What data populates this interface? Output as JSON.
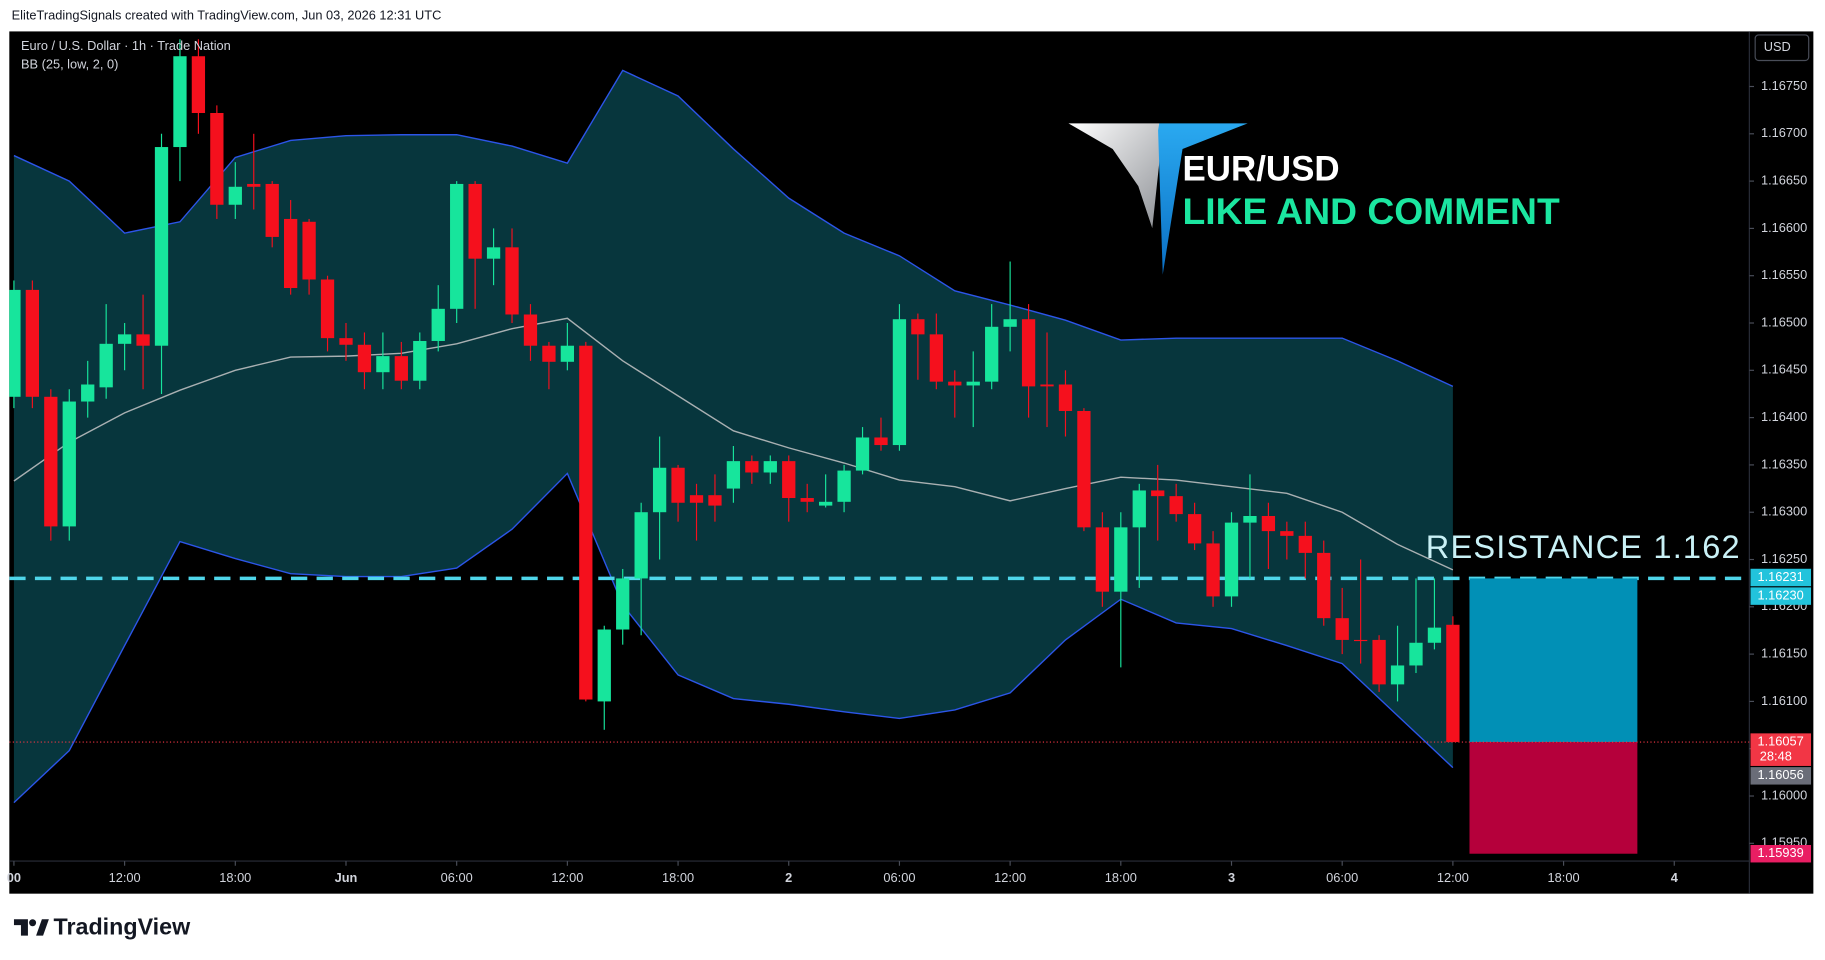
{
  "header": {
    "credit": "EliteTradingSignals created with TradingView.com, Jun 03, 2026 12:31 UTC"
  },
  "overlay": {
    "symbol": "EUR/USD",
    "cta": "LIKE AND COMMENT"
  },
  "footer": {
    "brand": "TradingView"
  },
  "chart_data": {
    "type": "candlestick",
    "title": "Euro / U.S. Dollar · 1h · Trade Nation",
    "indicator": "BB (25, low, 2, 0)",
    "currency": "USD",
    "up_color": "#17e59c",
    "down_color": "#f5101d",
    "ohlc": [
      [
        1.16422,
        1.16545,
        1.1641,
        1.16535
      ],
      [
        1.16535,
        1.16545,
        1.1641,
        1.16422
      ],
      [
        1.16422,
        1.1643,
        1.1627,
        1.16285
      ],
      [
        1.16285,
        1.1643,
        1.1627,
        1.16417
      ],
      [
        1.16417,
        1.1646,
        1.164,
        1.16435
      ],
      [
        1.16432,
        1.1652,
        1.1642,
        1.16478
      ],
      [
        1.16478,
        1.165,
        1.1645,
        1.16488
      ],
      [
        1.16488,
        1.1653,
        1.1643,
        1.16476
      ],
      [
        1.16476,
        1.167,
        1.16425,
        1.16686
      ],
      [
        1.16686,
        1.168,
        1.1665,
        1.16782
      ],
      [
        1.16782,
        1.168,
        1.167,
        1.16722
      ],
      [
        1.16722,
        1.1673,
        1.1661,
        1.16625
      ],
      [
        1.16625,
        1.1667,
        1.1661,
        1.16644
      ],
      [
        1.16647,
        1.167,
        1.1662,
        1.16644
      ],
      [
        1.16647,
        1.1665,
        1.1658,
        1.16591
      ],
      [
        1.1661,
        1.1663,
        1.1653,
        1.16537
      ],
      [
        1.16607,
        1.1661,
        1.1653,
        1.16546
      ],
      [
        1.16546,
        1.1655,
        1.1647,
        1.16484
      ],
      [
        1.16484,
        1.165,
        1.1646,
        1.16477
      ],
      [
        1.16477,
        1.1649,
        1.1643,
        1.16448
      ],
      [
        1.16448,
        1.1649,
        1.1643,
        1.16465
      ],
      [
        1.16465,
        1.1648,
        1.1643,
        1.16439
      ],
      [
        1.16439,
        1.1649,
        1.1643,
        1.16481
      ],
      [
        1.16481,
        1.1654,
        1.1647,
        1.16515
      ],
      [
        1.16515,
        1.1665,
        1.165,
        1.16647
      ],
      [
        1.16647,
        1.1665,
        1.16515,
        1.16568
      ],
      [
        1.16568,
        1.166,
        1.1654,
        1.1658
      ],
      [
        1.1658,
        1.166,
        1.165,
        1.16509
      ],
      [
        1.16509,
        1.1652,
        1.1646,
        1.16476
      ],
      [
        1.16476,
        1.1648,
        1.1643,
        1.16459
      ],
      [
        1.16459,
        1.165,
        1.1645,
        1.16476
      ],
      [
        1.16476,
        1.1648,
        1.161,
        1.16102
      ],
      [
        1.161,
        1.1618,
        1.1607,
        1.16176
      ],
      [
        1.16176,
        1.1624,
        1.1616,
        1.1623
      ],
      [
        1.1623,
        1.1631,
        1.1617,
        1.163
      ],
      [
        1.163,
        1.1638,
        1.1625,
        1.16347
      ],
      [
        1.16347,
        1.1635,
        1.1629,
        1.1631
      ],
      [
        1.16318,
        1.1633,
        1.1627,
        1.1631
      ],
      [
        1.16318,
        1.1634,
        1.1629,
        1.16307
      ],
      [
        1.16325,
        1.1637,
        1.1631,
        1.16354
      ],
      [
        1.16354,
        1.1636,
        1.1633,
        1.16342
      ],
      [
        1.16342,
        1.1636,
        1.1633,
        1.16354
      ],
      [
        1.16354,
        1.1636,
        1.1629,
        1.16315
      ],
      [
        1.16315,
        1.1633,
        1.163,
        1.16311
      ],
      [
        1.16307,
        1.1634,
        1.16305,
        1.16311
      ],
      [
        1.16311,
        1.1635,
        1.163,
        1.16344
      ],
      [
        1.16344,
        1.1639,
        1.1634,
        1.16379
      ],
      [
        1.16379,
        1.164,
        1.16365,
        1.16371
      ],
      [
        1.16371,
        1.1652,
        1.16365,
        1.16504
      ],
      [
        1.16504,
        1.1651,
        1.1644,
        1.16488
      ],
      [
        1.16488,
        1.1651,
        1.1643,
        1.16438
      ],
      [
        1.16438,
        1.1645,
        1.164,
        1.16434
      ],
      [
        1.16434,
        1.1647,
        1.1639,
        1.16438
      ],
      [
        1.16438,
        1.1652,
        1.1643,
        1.16496
      ],
      [
        1.16496,
        1.16565,
        1.1647,
        1.16504
      ],
      [
        1.16504,
        1.1652,
        1.164,
        1.16433
      ],
      [
        1.16435,
        1.1649,
        1.1639,
        1.16433
      ],
      [
        1.16435,
        1.1645,
        1.1638,
        1.16407
      ],
      [
        1.16407,
        1.1641,
        1.1628,
        1.16284
      ],
      [
        1.16284,
        1.163,
        1.162,
        1.16216
      ],
      [
        1.16216,
        1.163,
        1.16136,
        1.16284
      ],
      [
        1.16284,
        1.1633,
        1.1622,
        1.16323
      ],
      [
        1.16323,
        1.1635,
        1.1627,
        1.16317
      ],
      [
        1.16317,
        1.1633,
        1.1629,
        1.16298
      ],
      [
        1.16298,
        1.1631,
        1.1626,
        1.16267
      ],
      [
        1.16267,
        1.1628,
        1.162,
        1.16211
      ],
      [
        1.16211,
        1.163,
        1.162,
        1.16289
      ],
      [
        1.16289,
        1.1634,
        1.1623,
        1.16296
      ],
      [
        1.16296,
        1.1631,
        1.1624,
        1.1628
      ],
      [
        1.1628,
        1.1629,
        1.1625,
        1.16275
      ],
      [
        1.16275,
        1.1629,
        1.1623,
        1.16257
      ],
      [
        1.16257,
        1.1627,
        1.1618,
        1.16188
      ],
      [
        1.16188,
        1.1622,
        1.1615,
        1.16165
      ],
      [
        1.16165,
        1.1625,
        1.1614,
        1.16164
      ],
      [
        1.16165,
        1.1617,
        1.1611,
        1.16118
      ],
      [
        1.16118,
        1.1618,
        1.161,
        1.16138
      ],
      [
        1.16138,
        1.1623,
        1.1613,
        1.16162
      ],
      [
        1.16162,
        1.1623,
        1.16155,
        1.16178
      ],
      [
        1.16181,
        1.1619,
        1.16057,
        1.16057
      ]
    ],
    "bollinger": {
      "x": [
        0,
        3,
        6,
        9,
        12,
        15,
        18,
        21,
        24,
        27,
        30,
        33,
        36,
        39,
        42,
        45,
        48,
        51,
        54,
        57,
        60,
        63,
        66,
        69,
        72,
        75,
        78
      ],
      "upper": [
        1.16677,
        1.1665,
        1.16595,
        1.16607,
        1.16675,
        1.16693,
        1.16698,
        1.16699,
        1.16699,
        1.16687,
        1.16669,
        1.16767,
        1.1674,
        1.16684,
        1.16632,
        1.16595,
        1.16571,
        1.16534,
        1.16519,
        1.16503,
        1.16482,
        1.16484,
        1.16484,
        1.16484,
        1.16484,
        1.1646,
        1.16433
      ],
      "middle": [
        1.16333,
        1.16374,
        1.16405,
        1.16429,
        1.1645,
        1.16464,
        1.16465,
        1.16468,
        1.16478,
        1.16494,
        1.16505,
        1.1646,
        1.16423,
        1.16386,
        1.16368,
        1.16352,
        1.16334,
        1.16327,
        1.16312,
        1.16325,
        1.16337,
        1.16334,
        1.16327,
        1.1632,
        1.163,
        1.16266,
        1.16239
      ],
      "lower": [
        1.15993,
        1.16048,
        1.16159,
        1.16269,
        1.16251,
        1.16235,
        1.16232,
        1.16232,
        1.16241,
        1.16282,
        1.16341,
        1.16202,
        1.16128,
        1.16103,
        1.16097,
        1.16089,
        1.16082,
        1.16091,
        1.16109,
        1.16165,
        1.16208,
        1.16183,
        1.16177,
        1.16159,
        1.1614,
        1.16085,
        1.1603
      ],
      "fill": "#07363d",
      "line_color": "#2c55e8",
      "mid_color": "#a9b0b2"
    },
    "xlim": [
      -0.25,
      94.07
    ],
    "xticks": [
      {
        "value": 0,
        "label": "00"
      },
      {
        "value": 6,
        "label": "12:00"
      },
      {
        "value": 12,
        "label": "18:00"
      },
      {
        "value": 18,
        "label": "Jun"
      },
      {
        "value": 24,
        "label": "06:00"
      },
      {
        "value": 30,
        "label": "12:00"
      },
      {
        "value": 36,
        "label": "18:00"
      },
      {
        "value": 42,
        "label": "2"
      },
      {
        "value": 48,
        "label": "06:00"
      },
      {
        "value": 54,
        "label": "12:00"
      },
      {
        "value": 60,
        "label": "18:00"
      },
      {
        "value": 66,
        "label": "3"
      },
      {
        "value": 72,
        "label": "06:00"
      },
      {
        "value": 78,
        "label": "12:00"
      },
      {
        "value": 84,
        "label": "18:00"
      },
      {
        "value": 90,
        "label": "4"
      }
    ],
    "ylim": [
      1.15898,
      1.16807
    ],
    "yticks": [
      {
        "value": 1.1595,
        "label": "1.15950"
      },
      {
        "value": 1.16,
        "label": "1.16000"
      },
      {
        "value": 1.1605,
        "label": "1.16050"
      },
      {
        "value": 1.161,
        "label": "1.16100"
      },
      {
        "value": 1.1615,
        "label": "1.16150"
      },
      {
        "value": 1.162,
        "label": "1.16200"
      },
      {
        "value": 1.1625,
        "label": "1.16250"
      },
      {
        "value": 1.163,
        "label": "1.16300"
      },
      {
        "value": 1.1635,
        "label": "1.16350"
      },
      {
        "value": 1.164,
        "label": "1.16400"
      },
      {
        "value": 1.1645,
        "label": "1.16450"
      },
      {
        "value": 1.165,
        "label": "1.16500"
      },
      {
        "value": 1.1655,
        "label": "1.16550"
      },
      {
        "value": 1.166,
        "label": "1.16600"
      },
      {
        "value": 1.1665,
        "label": "1.16650"
      },
      {
        "value": 1.167,
        "label": "1.16700"
      },
      {
        "value": 1.1675,
        "label": "1.16750"
      }
    ],
    "resistance": {
      "value": 1.1623,
      "label": "RESISTANCE  1.162",
      "color": "#4fd6ea",
      "text_color": "#c9f1f6"
    },
    "position": {
      "x": [
        78.9,
        88.0
      ],
      "entry": 1.16057,
      "target": 1.1623,
      "stop": 1.15939,
      "target_color": "#0190b6",
      "stop_color": "#b5003b"
    },
    "price_labels": [
      {
        "value": 1.16231,
        "label": "1.16231",
        "color": "#22c3dc"
      },
      {
        "value": 1.1623,
        "label": "1.16230",
        "color": "#22c3dc"
      },
      {
        "value": 1.16057,
        "label": "1.16057",
        "color": "#f23645"
      },
      {
        "value": 1.16056,
        "label": "1.16056",
        "color": "#6a6d78"
      },
      {
        "value": 1.15939,
        "label": "1.15939",
        "color": "#e91e63"
      }
    ],
    "countdown": "28:48"
  }
}
